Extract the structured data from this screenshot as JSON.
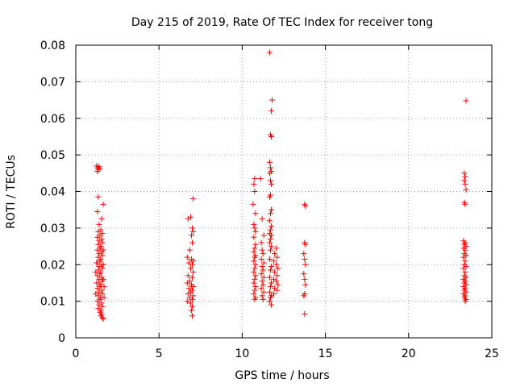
{
  "chart_data": {
    "type": "scatter",
    "title": "Day 215 of 2019, Rate Of TEC Index for receiver tong",
    "xlabel": "GPS time / hours",
    "ylabel": "ROTI / TECUs",
    "xlim": [
      0,
      25
    ],
    "ylim": [
      0,
      0.08
    ],
    "grid": true,
    "marker": "+",
    "color": "#ff0000",
    "x_ticks": [
      0,
      5,
      10,
      15,
      20,
      25
    ],
    "x_tick_labels": [
      "0",
      "5",
      "10",
      "15",
      "20",
      "25"
    ],
    "y_ticks": [
      0,
      0.01,
      0.02,
      0.03,
      0.04,
      0.05,
      0.06,
      0.07,
      0.08
    ],
    "y_tick_labels": [
      "0",
      "0.01",
      "0.02",
      "0.03",
      "0.04",
      "0.05",
      "0.06",
      "0.07",
      "0.08"
    ],
    "series": [
      {
        "name": "ROTI",
        "points": [
          [
            1.25,
            0.047
          ],
          [
            1.3,
            0.0465
          ],
          [
            1.35,
            0.046
          ],
          [
            1.4,
            0.0468
          ],
          [
            1.3,
            0.0455
          ],
          [
            1.45,
            0.0462
          ],
          [
            1.35,
            0.0385
          ],
          [
            1.65,
            0.0365
          ],
          [
            1.3,
            0.0345
          ],
          [
            1.55,
            0.0325
          ],
          [
            1.4,
            0.031
          ],
          [
            1.5,
            0.0295
          ],
          [
            1.35,
            0.029
          ],
          [
            1.6,
            0.0285
          ],
          [
            1.45,
            0.028
          ],
          [
            1.3,
            0.0275
          ],
          [
            1.55,
            0.027
          ],
          [
            1.4,
            0.0265
          ],
          [
            1.6,
            0.026
          ],
          [
            1.35,
            0.0255
          ],
          [
            1.5,
            0.025
          ],
          [
            1.45,
            0.0245
          ],
          [
            1.3,
            0.024
          ],
          [
            1.55,
            0.0235
          ],
          [
            1.4,
            0.023
          ],
          [
            1.6,
            0.0225
          ],
          [
            1.35,
            0.022
          ],
          [
            1.5,
            0.0215
          ],
          [
            1.45,
            0.021
          ],
          [
            1.3,
            0.0205
          ],
          [
            1.55,
            0.02
          ],
          [
            1.4,
            0.0195
          ],
          [
            1.6,
            0.019
          ],
          [
            1.35,
            0.0185
          ],
          [
            1.5,
            0.018
          ],
          [
            1.45,
            0.0175
          ],
          [
            1.3,
            0.017
          ],
          [
            1.55,
            0.0165
          ],
          [
            1.4,
            0.016
          ],
          [
            1.6,
            0.0155
          ],
          [
            1.35,
            0.015
          ],
          [
            1.5,
            0.0145
          ],
          [
            1.45,
            0.014
          ],
          [
            1.3,
            0.0135
          ],
          [
            1.55,
            0.013
          ],
          [
            1.4,
            0.0125
          ],
          [
            1.6,
            0.012
          ],
          [
            1.35,
            0.0115
          ],
          [
            1.5,
            0.011
          ],
          [
            1.45,
            0.0105
          ],
          [
            1.3,
            0.01
          ],
          [
            1.55,
            0.0095
          ],
          [
            1.4,
            0.009
          ],
          [
            1.6,
            0.0085
          ],
          [
            1.35,
            0.008
          ],
          [
            1.5,
            0.0075
          ],
          [
            1.45,
            0.007
          ],
          [
            1.55,
            0.0065
          ],
          [
            1.5,
            0.006
          ],
          [
            1.6,
            0.0055
          ],
          [
            1.65,
            0.0052
          ],
          [
            1.25,
            0.0205
          ],
          [
            1.2,
            0.018
          ],
          [
            1.25,
            0.015
          ],
          [
            1.2,
            0.012
          ],
          [
            1.65,
            0.024
          ],
          [
            1.65,
            0.02
          ],
          [
            1.65,
            0.016
          ],
          [
            1.7,
            0.014
          ],
          [
            1.7,
            0.011
          ],
          [
            6.75,
            0.0325
          ],
          [
            7.05,
            0.038
          ],
          [
            6.9,
            0.033
          ],
          [
            7.0,
            0.03
          ],
          [
            7.05,
            0.029
          ],
          [
            6.95,
            0.028
          ],
          [
            7.0,
            0.026
          ],
          [
            6.85,
            0.024
          ],
          [
            6.7,
            0.022
          ],
          [
            6.95,
            0.0215
          ],
          [
            7.05,
            0.021
          ],
          [
            6.8,
            0.0205
          ],
          [
            7.0,
            0.02
          ],
          [
            6.9,
            0.019
          ],
          [
            7.05,
            0.018
          ],
          [
            6.75,
            0.017
          ],
          [
            7.0,
            0.0165
          ],
          [
            6.85,
            0.0155
          ],
          [
            6.7,
            0.015
          ],
          [
            6.95,
            0.0145
          ],
          [
            7.05,
            0.014
          ],
          [
            6.8,
            0.0135
          ],
          [
            7.0,
            0.013
          ],
          [
            6.9,
            0.0125
          ],
          [
            6.75,
            0.012
          ],
          [
            7.05,
            0.0115
          ],
          [
            6.85,
            0.011
          ],
          [
            7.0,
            0.0105
          ],
          [
            6.7,
            0.01
          ],
          [
            6.9,
            0.0095
          ],
          [
            7.0,
            0.0085
          ],
          [
            6.95,
            0.0075
          ],
          [
            7.0,
            0.006
          ],
          [
            10.75,
            0.0435
          ],
          [
            10.7,
            0.042
          ],
          [
            10.75,
            0.04
          ],
          [
            11.1,
            0.0435
          ],
          [
            10.65,
            0.0365
          ],
          [
            10.8,
            0.034
          ],
          [
            10.7,
            0.031
          ],
          [
            10.75,
            0.03
          ],
          [
            11.2,
            0.0325
          ],
          [
            10.8,
            0.029
          ],
          [
            11.3,
            0.028
          ],
          [
            10.7,
            0.0275
          ],
          [
            11.15,
            0.026
          ],
          [
            10.8,
            0.0255
          ],
          [
            10.75,
            0.0245
          ],
          [
            11.2,
            0.024
          ],
          [
            10.7,
            0.0235
          ],
          [
            11.25,
            0.023
          ],
          [
            10.8,
            0.0225
          ],
          [
            10.75,
            0.022
          ],
          [
            11.15,
            0.0215
          ],
          [
            10.7,
            0.021
          ],
          [
            11.3,
            0.0205
          ],
          [
            10.8,
            0.02
          ],
          [
            11.2,
            0.0195
          ],
          [
            10.75,
            0.019
          ],
          [
            11.25,
            0.0185
          ],
          [
            10.7,
            0.018
          ],
          [
            11.15,
            0.0175
          ],
          [
            10.8,
            0.017
          ],
          [
            11.3,
            0.0165
          ],
          [
            10.75,
            0.016
          ],
          [
            11.2,
            0.0155
          ],
          [
            10.7,
            0.015
          ],
          [
            11.25,
            0.0145
          ],
          [
            10.8,
            0.014
          ],
          [
            11.15,
            0.0135
          ],
          [
            10.75,
            0.013
          ],
          [
            11.3,
            0.0125
          ],
          [
            10.7,
            0.012
          ],
          [
            11.2,
            0.0115
          ],
          [
            10.8,
            0.011
          ],
          [
            10.75,
            0.0105
          ],
          [
            11.25,
            0.0105
          ],
          [
            11.65,
            0.078
          ],
          [
            11.8,
            0.065
          ],
          [
            11.75,
            0.062
          ],
          [
            11.7,
            0.0555
          ],
          [
            11.75,
            0.055
          ],
          [
            11.65,
            0.048
          ],
          [
            11.7,
            0.0465
          ],
          [
            11.75,
            0.0455
          ],
          [
            11.65,
            0.045
          ],
          [
            11.7,
            0.043
          ],
          [
            11.75,
            0.042
          ],
          [
            11.7,
            0.039
          ],
          [
            11.65,
            0.0385
          ],
          [
            11.75,
            0.035
          ],
          [
            11.7,
            0.034
          ],
          [
            11.65,
            0.032
          ],
          [
            11.75,
            0.0305
          ],
          [
            11.7,
            0.0295
          ],
          [
            11.65,
            0.0285
          ],
          [
            11.75,
            0.028
          ],
          [
            11.7,
            0.027
          ],
          [
            11.65,
            0.026
          ],
          [
            11.75,
            0.025
          ],
          [
            12.05,
            0.0245
          ],
          [
            11.7,
            0.024
          ],
          [
            11.95,
            0.023
          ],
          [
            12.1,
            0.022
          ],
          [
            11.65,
            0.0215
          ],
          [
            11.9,
            0.021
          ],
          [
            12.05,
            0.02
          ],
          [
            11.75,
            0.0195
          ],
          [
            12.15,
            0.019
          ],
          [
            11.7,
            0.0185
          ],
          [
            11.95,
            0.018
          ],
          [
            12.1,
            0.017
          ],
          [
            11.65,
            0.0165
          ],
          [
            11.9,
            0.016
          ],
          [
            12.05,
            0.0155
          ],
          [
            11.75,
            0.015
          ],
          [
            12.15,
            0.0145
          ],
          [
            11.7,
            0.014
          ],
          [
            11.95,
            0.0135
          ],
          [
            12.1,
            0.013
          ],
          [
            11.65,
            0.0125
          ],
          [
            11.9,
            0.012
          ],
          [
            11.75,
            0.0115
          ],
          [
            11.7,
            0.011
          ],
          [
            11.65,
            0.01
          ],
          [
            11.75,
            0.009
          ],
          [
            13.75,
            0.0365
          ],
          [
            13.8,
            0.036
          ],
          [
            13.75,
            0.026
          ],
          [
            13.8,
            0.0255
          ],
          [
            13.7,
            0.023
          ],
          [
            13.75,
            0.0215
          ],
          [
            13.8,
            0.02
          ],
          [
            13.7,
            0.0175
          ],
          [
            13.75,
            0.016
          ],
          [
            13.8,
            0.0145
          ],
          [
            13.75,
            0.012
          ],
          [
            13.7,
            0.0115
          ],
          [
            13.75,
            0.0065
          ],
          [
            23.45,
            0.0648
          ],
          [
            23.35,
            0.045
          ],
          [
            23.4,
            0.044
          ],
          [
            23.35,
            0.043
          ],
          [
            23.4,
            0.042
          ],
          [
            23.45,
            0.0405
          ],
          [
            23.35,
            0.037
          ],
          [
            23.4,
            0.0365
          ],
          [
            23.3,
            0.0265
          ],
          [
            23.4,
            0.026
          ],
          [
            23.35,
            0.0255
          ],
          [
            23.45,
            0.025
          ],
          [
            23.3,
            0.0245
          ],
          [
            23.4,
            0.024
          ],
          [
            23.35,
            0.023
          ],
          [
            23.45,
            0.0225
          ],
          [
            23.3,
            0.022
          ],
          [
            23.4,
            0.021
          ],
          [
            23.35,
            0.02
          ],
          [
            23.45,
            0.0195
          ],
          [
            23.3,
            0.019
          ],
          [
            23.4,
            0.018
          ],
          [
            23.35,
            0.017
          ],
          [
            23.45,
            0.0165
          ],
          [
            23.3,
            0.016
          ],
          [
            23.4,
            0.0155
          ],
          [
            23.35,
            0.015
          ],
          [
            23.45,
            0.0145
          ],
          [
            23.3,
            0.014
          ],
          [
            23.4,
            0.0135
          ],
          [
            23.35,
            0.013
          ],
          [
            23.45,
            0.0125
          ],
          [
            23.3,
            0.012
          ],
          [
            23.4,
            0.0115
          ],
          [
            23.35,
            0.011
          ],
          [
            23.45,
            0.0105
          ],
          [
            23.4,
            0.01
          ]
        ]
      }
    ]
  }
}
